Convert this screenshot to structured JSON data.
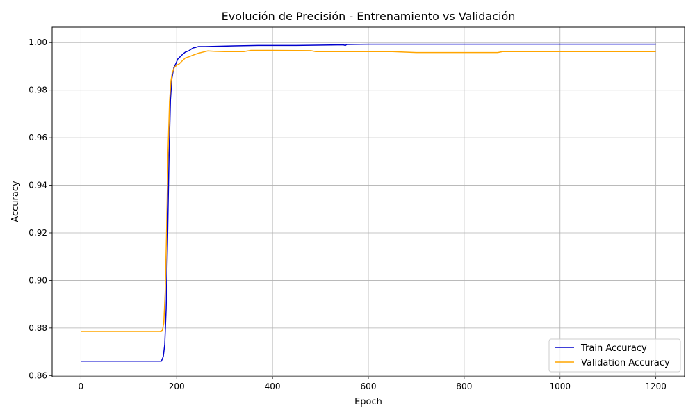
{
  "chart_data": {
    "type": "line",
    "title": "Evolución de Precisión - Entrenamiento vs Validación",
    "xlabel": "Epoch",
    "ylabel": "Accuracy",
    "xlim": [
      -60,
      1260
    ],
    "ylim": [
      0.8595,
      1.0065
    ],
    "x_ticks": [
      0,
      200,
      400,
      600,
      800,
      1000,
      1200
    ],
    "y_ticks": [
      0.86,
      0.88,
      0.9,
      0.92,
      0.94,
      0.96,
      0.98,
      1.0
    ],
    "x_tick_labels": [
      "0",
      "200",
      "400",
      "600",
      "800",
      "1000",
      "1200"
    ],
    "y_tick_labels": [
      "0.86",
      "0.88",
      "0.90",
      "0.92",
      "0.94",
      "0.96",
      "0.98",
      "1.00"
    ],
    "grid": true,
    "legend_position": "bottom-right",
    "series": [
      {
        "name": "Train Accuracy",
        "color": "#0000cc",
        "x": [
          0,
          168,
          172,
          175,
          178,
          181,
          184,
          187,
          190,
          194,
          198,
          202,
          207,
          212,
          218,
          225,
          230,
          235,
          240,
          245,
          260,
          320,
          370,
          450,
          535,
          548,
          552,
          555,
          600,
          800,
          1000,
          1200
        ],
        "y": [
          0.866,
          0.866,
          0.868,
          0.873,
          0.888,
          0.918,
          0.952,
          0.976,
          0.985,
          0.9895,
          0.991,
          0.993,
          0.994,
          0.995,
          0.996,
          0.9965,
          0.9972,
          0.9978,
          0.998,
          0.9983,
          0.9983,
          0.9986,
          0.9988,
          0.9988,
          0.999,
          0.999,
          0.9988,
          0.9992,
          0.9993,
          0.9993,
          0.9993,
          0.9993
        ]
      },
      {
        "name": "Validation Accuracy",
        "color": "#ffa500",
        "x": [
          0,
          165,
          170,
          173,
          176,
          179,
          182,
          185,
          188,
          191,
          195,
          200,
          205,
          210,
          218,
          225,
          235,
          245,
          255,
          265,
          280,
          300,
          340,
          355,
          400,
          480,
          490,
          500,
          600,
          650,
          700,
          760,
          800,
          870,
          880,
          1000,
          1150,
          1200
        ],
        "y": [
          0.8785,
          0.8785,
          0.879,
          0.882,
          0.895,
          0.922,
          0.955,
          0.975,
          0.984,
          0.9875,
          0.9895,
          0.9905,
          0.991,
          0.992,
          0.9935,
          0.994,
          0.9948,
          0.9955,
          0.996,
          0.9965,
          0.9963,
          0.9962,
          0.9962,
          0.9967,
          0.9967,
          0.9966,
          0.9962,
          0.9962,
          0.9962,
          0.9962,
          0.9958,
          0.9958,
          0.9958,
          0.9958,
          0.9962,
          0.9962,
          0.9962,
          0.9962
        ]
      }
    ]
  }
}
